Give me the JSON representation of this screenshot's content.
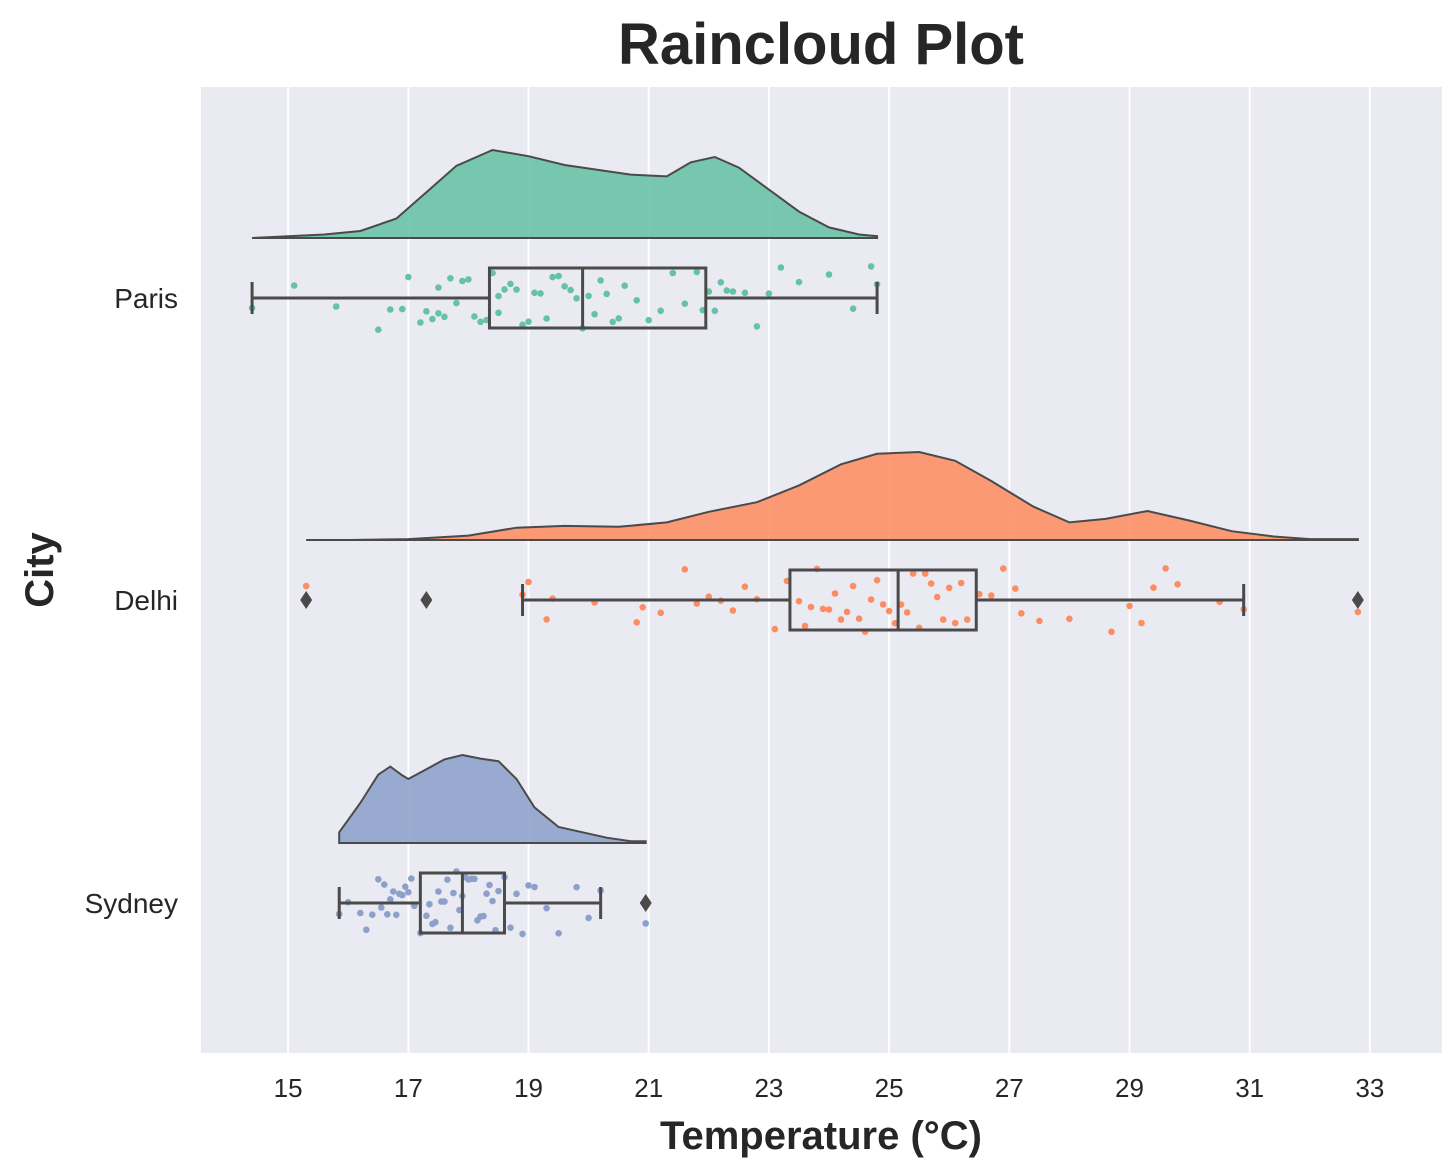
{
  "chart_data": {
    "type": "raincloud",
    "title": "Raincloud Plot",
    "xlabel": "Temperature (°C)",
    "ylabel": "City",
    "xlim": [
      13.55,
      34.2
    ],
    "xticks": [
      15,
      17,
      19,
      21,
      23,
      25,
      27,
      29,
      31,
      33
    ],
    "grid": true,
    "orientation": "horizontal",
    "colors": {
      "background": "#eaeaf2",
      "grid": "#ffffff",
      "line": "#4a4a4a",
      "text": "#262626"
    },
    "categories": [
      "Paris",
      "Delhi",
      "Sydney"
    ],
    "series": [
      {
        "name": "Paris",
        "color": "#66c2a5",
        "box": {
          "whisker_low": 14.4,
          "q1": 18.35,
          "median": 19.9,
          "q3": 21.95,
          "whisker_high": 24.8
        },
        "outliers": [],
        "density": [
          [
            14.4,
            0.0
          ],
          [
            15.0,
            0.02
          ],
          [
            15.6,
            0.04
          ],
          [
            16.2,
            0.08
          ],
          [
            16.8,
            0.22
          ],
          [
            17.3,
            0.52
          ],
          [
            17.8,
            0.82
          ],
          [
            18.4,
            1.0
          ],
          [
            19.0,
            0.93
          ],
          [
            19.6,
            0.83
          ],
          [
            20.2,
            0.77
          ],
          [
            20.7,
            0.72
          ],
          [
            21.3,
            0.7
          ],
          [
            21.7,
            0.86
          ],
          [
            22.1,
            0.92
          ],
          [
            22.5,
            0.8
          ],
          [
            23.0,
            0.55
          ],
          [
            23.5,
            0.3
          ],
          [
            24.0,
            0.12
          ],
          [
            24.5,
            0.04
          ],
          [
            24.8,
            0.02
          ]
        ],
        "points": [
          14.4,
          15.1,
          15.8,
          16.5,
          16.7,
          16.9,
          17.0,
          17.2,
          17.3,
          17.4,
          17.5,
          17.5,
          17.6,
          17.7,
          17.8,
          17.9,
          18.0,
          18.1,
          18.2,
          18.3,
          18.4,
          18.5,
          18.5,
          18.6,
          18.7,
          18.8,
          18.9,
          19.0,
          19.1,
          19.2,
          19.3,
          19.4,
          19.5,
          19.6,
          19.7,
          19.8,
          19.9,
          20.0,
          20.1,
          20.2,
          20.3,
          20.4,
          20.5,
          20.6,
          20.8,
          21.0,
          21.2,
          21.4,
          21.6,
          21.8,
          21.9,
          22.0,
          22.1,
          22.2,
          22.3,
          22.4,
          22.6,
          22.8,
          23.0,
          23.2,
          23.5,
          24.0,
          24.4,
          24.7,
          24.8
        ]
      },
      {
        "name": "Delhi",
        "color": "#fc8d62",
        "box": {
          "whisker_low": 18.9,
          "q1": 23.35,
          "median": 25.15,
          "q3": 26.45,
          "whisker_high": 30.9
        },
        "outliers": [
          15.3,
          17.3,
          32.8
        ],
        "density": [
          [
            15.3,
            0.0
          ],
          [
            16.0,
            0.0
          ],
          [
            17.0,
            0.01
          ],
          [
            18.0,
            0.05
          ],
          [
            18.8,
            0.14
          ],
          [
            19.6,
            0.16
          ],
          [
            20.5,
            0.15
          ],
          [
            21.3,
            0.2
          ],
          [
            22.0,
            0.32
          ],
          [
            22.8,
            0.43
          ],
          [
            23.5,
            0.62
          ],
          [
            24.2,
            0.86
          ],
          [
            24.8,
            0.98
          ],
          [
            25.5,
            1.0
          ],
          [
            26.1,
            0.9
          ],
          [
            26.7,
            0.67
          ],
          [
            27.4,
            0.38
          ],
          [
            28.0,
            0.2
          ],
          [
            28.6,
            0.24
          ],
          [
            29.3,
            0.33
          ],
          [
            30.0,
            0.22
          ],
          [
            30.7,
            0.1
          ],
          [
            31.4,
            0.04
          ],
          [
            32.0,
            0.01
          ],
          [
            32.8,
            0.01
          ]
        ],
        "points": [
          15.3,
          18.9,
          19.0,
          19.3,
          19.4,
          20.1,
          20.8,
          20.9,
          21.2,
          21.6,
          21.8,
          22.0,
          22.2,
          22.4,
          22.6,
          22.8,
          23.1,
          23.3,
          23.5,
          23.6,
          23.7,
          23.8,
          23.9,
          24.0,
          24.1,
          24.2,
          24.3,
          24.4,
          24.5,
          24.6,
          24.7,
          24.8,
          24.9,
          25.0,
          25.1,
          25.2,
          25.3,
          25.4,
          25.5,
          25.6,
          25.7,
          25.8,
          25.9,
          26.0,
          26.1,
          26.2,
          26.3,
          26.5,
          26.7,
          26.9,
          27.1,
          27.2,
          27.5,
          28.0,
          28.7,
          29.0,
          29.2,
          29.4,
          29.6,
          29.8,
          30.5,
          30.9,
          32.8
        ]
      },
      {
        "name": "Sydney",
        "color": "#8da0cb",
        "box": {
          "whisker_low": 15.85,
          "q1": 17.2,
          "median": 17.9,
          "q3": 18.6,
          "whisker_high": 20.2
        },
        "outliers": [
          20.95
        ],
        "density": [
          [
            15.85,
            0.12
          ],
          [
            16.2,
            0.45
          ],
          [
            16.5,
            0.77
          ],
          [
            16.7,
            0.86
          ],
          [
            16.9,
            0.76
          ],
          [
            17.0,
            0.72
          ],
          [
            17.3,
            0.83
          ],
          [
            17.6,
            0.94
          ],
          [
            17.9,
            0.99
          ],
          [
            18.2,
            0.95
          ],
          [
            18.5,
            0.92
          ],
          [
            18.8,
            0.72
          ],
          [
            19.1,
            0.4
          ],
          [
            19.5,
            0.18
          ],
          [
            19.9,
            0.12
          ],
          [
            20.3,
            0.06
          ],
          [
            20.7,
            0.02
          ],
          [
            20.95,
            0.02
          ]
        ],
        "points": [
          15.85,
          16.0,
          16.2,
          16.3,
          16.4,
          16.5,
          16.55,
          16.6,
          16.65,
          16.7,
          16.75,
          16.8,
          16.85,
          16.9,
          16.95,
          17.0,
          17.05,
          17.1,
          17.2,
          17.3,
          17.35,
          17.4,
          17.45,
          17.5,
          17.55,
          17.6,
          17.65,
          17.7,
          17.75,
          17.8,
          17.85,
          17.9,
          17.95,
          18.0,
          18.05,
          18.1,
          18.15,
          18.2,
          18.25,
          18.3,
          18.35,
          18.4,
          18.45,
          18.5,
          18.6,
          18.7,
          18.8,
          18.9,
          19.0,
          19.1,
          19.3,
          19.5,
          19.8,
          20.0,
          20.2,
          20.95
        ]
      }
    ]
  }
}
